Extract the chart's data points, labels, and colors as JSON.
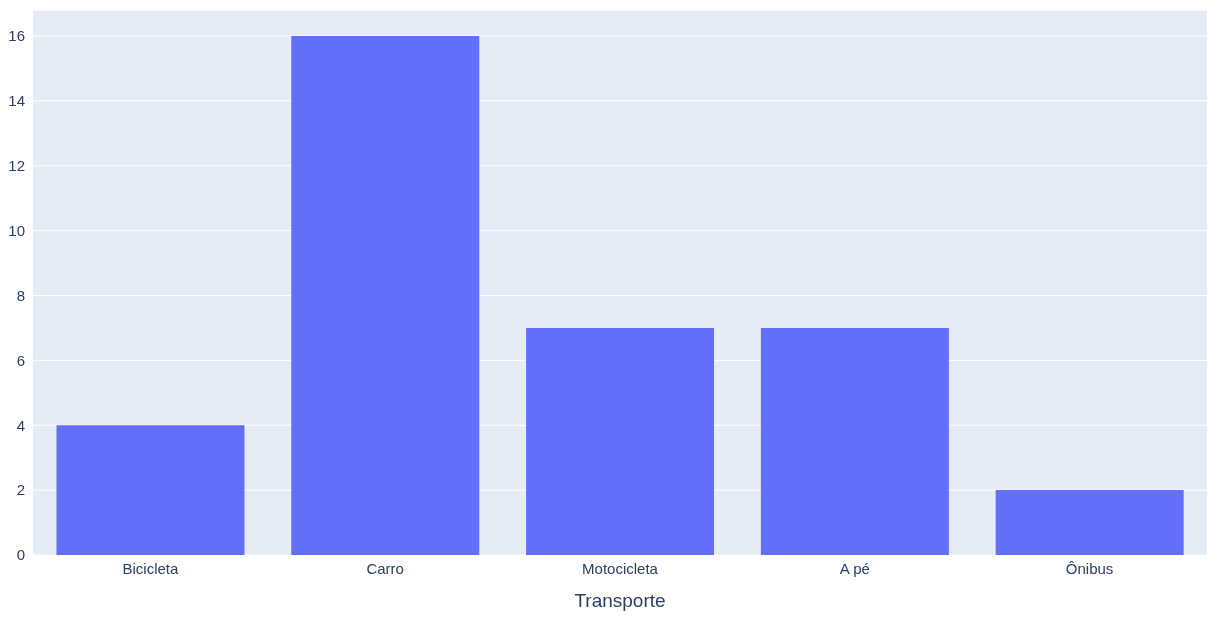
{
  "chart_data": {
    "type": "bar",
    "xlabel": "Transporte",
    "categories": [
      "Bicicleta",
      "Carro",
      "Motocicleta",
      "A pé",
      "Ônibus"
    ],
    "values": [
      4,
      16,
      7,
      7,
      2
    ],
    "color": "#636efa",
    "ylim": [
      0,
      16.8
    ],
    "yticks": [
      0,
      2,
      4,
      6,
      8,
      10,
      12,
      14,
      16
    ],
    "grid": "y"
  }
}
